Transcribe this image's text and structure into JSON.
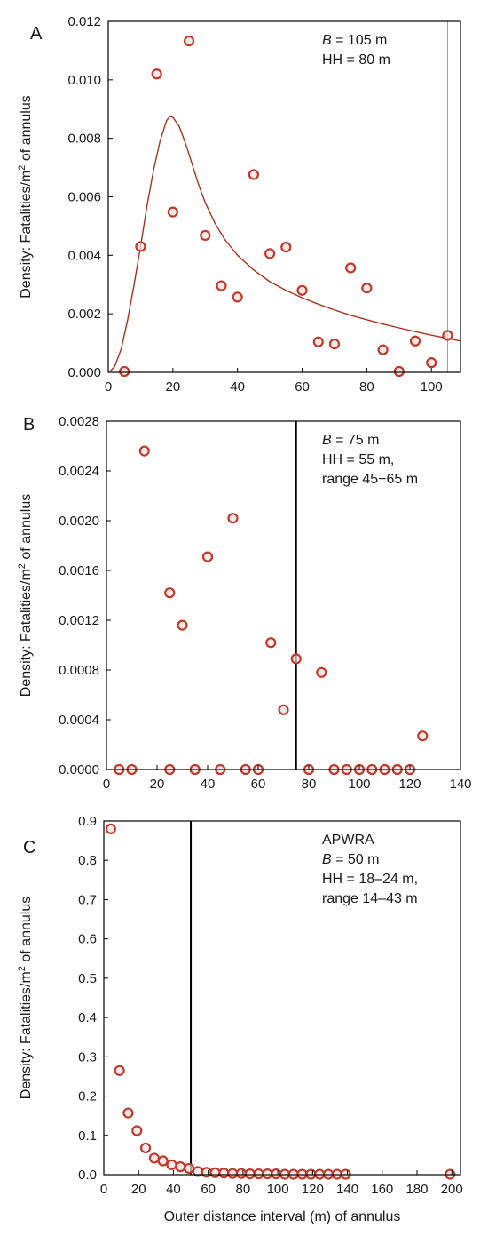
{
  "colors": {
    "marker": "#c0392b",
    "curve": "#a8321e",
    "axis": "#000000",
    "refline": "#000000",
    "refline_light": "#999999"
  },
  "chart_data": [
    {
      "type": "scatter",
      "panel": "A",
      "ylabel_pre": "Density: Fatalities/m",
      "ylabel_sup": "2",
      "ylabel_post": " of annulus",
      "xlabel": "",
      "xlim": [
        0,
        109
      ],
      "ylim": [
        0,
        0.012
      ],
      "xticks": [
        0,
        20,
        40,
        60,
        80,
        100
      ],
      "xtick_labels": [
        "0",
        "20",
        "40",
        "60",
        "80",
        "100"
      ],
      "yticks": [
        0,
        0.002,
        0.004,
        0.006,
        0.008,
        0.01,
        0.012
      ],
      "ytick_labels": [
        "0.000",
        "0.002",
        "0.004",
        "0.006",
        "0.008",
        "0.010",
        "0.012"
      ],
      "annotation": [
        {
          "italic": "B",
          "rest": " = 105 m"
        },
        {
          "italic": "",
          "rest": "HH = 80 m"
        }
      ],
      "reference_line": {
        "x": 105,
        "style": "light"
      },
      "points": [
        [
          5,
          3e-05
        ],
        [
          10,
          0.0043
        ],
        [
          15,
          0.0102
        ],
        [
          20,
          0.00548
        ],
        [
          25,
          0.01133
        ],
        [
          30,
          0.00468
        ],
        [
          35,
          0.00296
        ],
        [
          40,
          0.00257
        ],
        [
          45,
          0.00676
        ],
        [
          50,
          0.00406
        ],
        [
          55,
          0.00428
        ],
        [
          60,
          0.0028
        ],
        [
          65,
          0.00104
        ],
        [
          70,
          0.00097
        ],
        [
          75,
          0.00357
        ],
        [
          80,
          0.00288
        ],
        [
          85,
          0.00077
        ],
        [
          90,
          3e-05
        ],
        [
          95,
          0.00107
        ],
        [
          100,
          0.00033
        ],
        [
          105,
          0.00126
        ]
      ],
      "curve": [
        [
          0.5,
          3e-05
        ],
        [
          2,
          0.0002
        ],
        [
          4,
          0.0008
        ],
        [
          6,
          0.0018
        ],
        [
          8,
          0.003
        ],
        [
          10,
          0.0043
        ],
        [
          12,
          0.0057
        ],
        [
          14,
          0.0069
        ],
        [
          16,
          0.0079
        ],
        [
          18,
          0.0086
        ],
        [
          19,
          0.00875
        ],
        [
          20,
          0.00872
        ],
        [
          22,
          0.0084
        ],
        [
          24,
          0.0078
        ],
        [
          26,
          0.0071
        ],
        [
          28,
          0.0064
        ],
        [
          30,
          0.0058
        ],
        [
          33,
          0.0051
        ],
        [
          36,
          0.00455
        ],
        [
          40,
          0.004
        ],
        [
          45,
          0.0035
        ],
        [
          50,
          0.0031
        ],
        [
          55,
          0.0028
        ],
        [
          60,
          0.00255
        ],
        [
          65,
          0.00233
        ],
        [
          70,
          0.00213
        ],
        [
          75,
          0.00195
        ],
        [
          80,
          0.0018
        ],
        [
          85,
          0.00165
        ],
        [
          90,
          0.00152
        ],
        [
          95,
          0.00139
        ],
        [
          100,
          0.00127
        ],
        [
          105,
          0.00116
        ],
        [
          109,
          0.00107
        ]
      ]
    },
    {
      "type": "scatter",
      "panel": "B",
      "ylabel_pre": "Density: Fatalities/m",
      "ylabel_sup": "2",
      "ylabel_post": " of annulus",
      "xlabel": "",
      "xlim": [
        0,
        140
      ],
      "ylim": [
        0,
        0.0028
      ],
      "xticks": [
        0,
        20,
        40,
        60,
        80,
        100,
        120,
        140
      ],
      "xtick_labels": [
        "0",
        "20",
        "40",
        "60",
        "80",
        "100",
        "120",
        "140"
      ],
      "yticks": [
        0,
        0.0004,
        0.0008,
        0.0012,
        0.0016,
        0.002,
        0.0024,
        0.0028
      ],
      "ytick_labels": [
        "0.0000",
        "0.0004",
        "0.0008",
        "0.0012",
        "0.0016",
        "0.0020",
        "0.0024",
        "0.0028"
      ],
      "annotation": [
        {
          "italic": "B",
          "rest": " = 75 m"
        },
        {
          "italic": "",
          "rest": "HH = 55 m,"
        },
        {
          "italic": "",
          "rest": "range 45−65 m"
        }
      ],
      "reference_line": {
        "x": 75,
        "style": "dark"
      },
      "points": [
        [
          5,
          0
        ],
        [
          10,
          0
        ],
        [
          15,
          0.00256
        ],
        [
          25,
          0.00142
        ],
        [
          25,
          0
        ],
        [
          30,
          0.00116
        ],
        [
          35,
          0
        ],
        [
          40,
          0.00171
        ],
        [
          45,
          0
        ],
        [
          50,
          0.00202
        ],
        [
          55,
          0
        ],
        [
          60,
          0
        ],
        [
          65,
          0.00102
        ],
        [
          70,
          0.00048
        ],
        [
          75,
          0.00089
        ],
        [
          80,
          0
        ],
        [
          85,
          0.00078
        ],
        [
          90,
          0
        ],
        [
          95,
          0
        ],
        [
          100,
          0
        ],
        [
          105,
          0
        ],
        [
          110,
          0
        ],
        [
          115,
          0
        ],
        [
          120,
          0
        ],
        [
          125,
          0.00027
        ]
      ]
    },
    {
      "type": "scatter",
      "panel": "C",
      "ylabel_pre": "Density: Fatalities/m",
      "ylabel_sup": "2",
      "ylabel_post": " of annulus",
      "xlabel": "Outer distance interval (m) of annulus",
      "xlim": [
        0,
        205
      ],
      "ylim": [
        0,
        0.9
      ],
      "xticks": [
        0,
        20,
        40,
        60,
        80,
        100,
        120,
        140,
        160,
        180,
        200
      ],
      "xtick_labels": [
        "0",
        "20",
        "40",
        "60",
        "80",
        "100",
        "120",
        "140",
        "160",
        "180",
        "200"
      ],
      "yticks": [
        0,
        0.1,
        0.2,
        0.3,
        0.4,
        0.5,
        0.6,
        0.7,
        0.8,
        0.9
      ],
      "ytick_labels": [
        "0.0",
        "0.1",
        "0.2",
        "0.3",
        "0.4",
        "0.5",
        "0.6",
        "0.7",
        "0.8",
        "0.9"
      ],
      "annotation": [
        {
          "italic": "",
          "rest": "APWRA"
        },
        {
          "italic": "B",
          "rest": " = 50 m"
        },
        {
          "italic": "",
          "rest": "HH = 18–24 m,"
        },
        {
          "italic": "",
          "rest": "range 14–43 m"
        }
      ],
      "reference_line": {
        "x": 50,
        "style": "dark"
      },
      "points": [
        [
          4,
          0.88
        ],
        [
          9,
          0.265
        ],
        [
          14,
          0.157
        ],
        [
          19,
          0.112
        ],
        [
          24,
          0.068
        ],
        [
          29,
          0.042
        ],
        [
          34,
          0.035
        ],
        [
          39,
          0.025
        ],
        [
          44,
          0.02
        ],
        [
          49,
          0.016
        ],
        [
          54,
          0.008
        ],
        [
          59,
          0.006
        ],
        [
          64,
          0.005
        ],
        [
          69,
          0.004
        ],
        [
          74,
          0.003
        ],
        [
          79,
          0.003
        ],
        [
          84,
          0.002
        ],
        [
          89,
          0.002
        ],
        [
          94,
          0.002
        ],
        [
          99,
          0.002
        ],
        [
          104,
          0.001
        ],
        [
          109,
          0.001
        ],
        [
          114,
          0.001
        ],
        [
          119,
          0.001
        ],
        [
          124,
          0.001
        ],
        [
          129,
          0.001
        ],
        [
          134,
          0.001
        ],
        [
          139,
          0.001
        ],
        [
          199,
          0.001
        ]
      ]
    }
  ]
}
